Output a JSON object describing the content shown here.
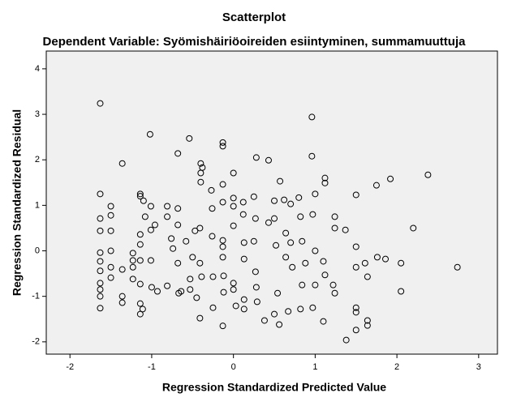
{
  "chart_data": {
    "type": "scatter",
    "title": "Scatterplot",
    "subtitle": "Dependent Variable: Syömishäiriöoireiden esiintyminen, summamuuttuja",
    "xlabel": "Regression Standardized Predicted Value",
    "ylabel": "Regression Standardized Residual",
    "xlim": [
      -2.29,
      3.23
    ],
    "ylim": [
      -2.27,
      4.39
    ],
    "xticks": [
      -2,
      -1,
      0,
      1,
      2,
      3
    ],
    "yticks": [
      -2,
      -1,
      0,
      1,
      2,
      3,
      4
    ],
    "grid": false,
    "color": "#000000",
    "background": "#f0f0f0",
    "x": [
      -1.63,
      -1.02,
      -1.36,
      -0.54,
      -0.68,
      -0.13,
      -0.13,
      0.96,
      0.96,
      0.28,
      0.43,
      2.38,
      1.92,
      1.75,
      1.12,
      1.12,
      1.5,
      2.2,
      2.74,
      1.38,
      1.5,
      1.64,
      1.64,
      1.5,
      1.5,
      1.1,
      0.97,
      0.56,
      0.5,
      0.38,
      -0.13,
      -0.41,
      -1.14,
      -1.11,
      -1.14,
      -1.36,
      -1.36,
      -1.63,
      -1.63,
      -1.63,
      -1.63,
      -1.63,
      -1.63,
      -1.63,
      -1.63,
      -1.63,
      -1.63,
      -1.5,
      -1.5,
      -1.5,
      -1.5,
      -1.5,
      -1.5,
      -1.36,
      -1.23,
      -1.23,
      -1.23,
      -1.23,
      -1.14,
      -1.14,
      -1.1,
      -1.08,
      -1.14,
      -1.14,
      -1.14,
      -1.14,
      -1.01,
      -1.01,
      -0.96,
      -1.01,
      -1.0,
      -0.93,
      -0.81,
      -0.81,
      -0.81,
      -0.76,
      -0.74,
      -0.68,
      -0.68,
      -0.68,
      -0.67,
      -0.64,
      -0.58,
      -0.53,
      -0.53,
      -0.5,
      -0.47,
      -0.45,
      -0.41,
      -0.41,
      -0.4,
      -0.4,
      -0.38,
      -0.4,
      -0.39,
      -0.27,
      -0.26,
      -0.26,
      -0.25,
      -0.25,
      -0.13,
      -0.13,
      -0.13,
      -0.13,
      -0.13,
      -0.12,
      -0.12,
      0,
      0,
      0,
      0,
      0,
      0,
      0.03,
      0.12,
      0.12,
      0.13,
      0.13,
      0.13,
      0.13,
      0.25,
      0.27,
      0.25,
      0.27,
      0.28,
      0.29,
      0.43,
      0.5,
      0.5,
      0.52,
      0.54,
      0.57,
      0.62,
      0.64,
      0.64,
      0.7,
      0.7,
      0.72,
      0.8,
      0.82,
      0.84,
      0.84,
      0.88,
      0.97,
      1.0,
      1.0,
      1.0,
      1.1,
      1.12,
      1.22,
      1.24,
      1.24,
      1.37,
      1.5,
      1.5,
      1.61,
      1.64,
      1.76,
      1.86,
      2.05,
      2.05,
      1.24,
      0.67,
      0.82
    ],
    "values": [
      3.24,
      2.56,
      1.92,
      2.47,
      2.14,
      2.38,
      2.3,
      2.94,
      2.08,
      2.05,
      1.99,
      1.67,
      1.58,
      1.44,
      1.6,
      1.49,
      1.23,
      0.5,
      -0.36,
      -1.96,
      -1.74,
      -1.53,
      -1.64,
      -1.25,
      -1.35,
      -1.55,
      -1.25,
      -1.62,
      -1.39,
      -1.53,
      -1.65,
      -1.48,
      -1.39,
      -1.28,
      -1.16,
      -1.14,
      -1.0,
      -1.26,
      -1.0,
      -0.85,
      -0.71,
      -0.44,
      -0.23,
      -0.04,
      0.44,
      0.71,
      1.25,
      0.98,
      0.78,
      0.44,
      0.0,
      -0.36,
      -0.59,
      -0.41,
      -0.05,
      -0.21,
      -0.36,
      -0.62,
      1.25,
      1.2,
      1.1,
      0.75,
      0.36,
      0.14,
      -0.21,
      -0.73,
      0.98,
      0.46,
      0.57,
      -0.21,
      -0.8,
      -0.89,
      0.98,
      0.75,
      -0.77,
      0.27,
      0.05,
      0.93,
      0.57,
      -0.27,
      -0.93,
      -0.89,
      0.21,
      -0.85,
      -0.62,
      -0.14,
      0.44,
      -1.03,
      0.5,
      -0.27,
      1.92,
      1.71,
      1.83,
      1.51,
      -0.57,
      1.33,
      0.93,
      0.32,
      -0.57,
      -1.25,
      1.07,
      1.46,
      0.23,
      0.09,
      -0.14,
      -0.55,
      -0.91,
      1.71,
      1.16,
      0.98,
      0.55,
      -0.71,
      -0.85,
      -1.21,
      1.07,
      0.8,
      0.18,
      -0.18,
      -1.07,
      -1.28,
      1.19,
      0.71,
      0.21,
      -0.46,
      -0.8,
      -1.12,
      0.62,
      1.1,
      0.71,
      0.12,
      -0.93,
      1.53,
      1.12,
      0.39,
      -0.14,
      1.03,
      0.18,
      -0.36,
      1.17,
      0.75,
      0.21,
      -0.75,
      -0.27,
      0.8,
      1.25,
      0.0,
      -0.75,
      -0.23,
      -0.53,
      -0.75,
      0.5,
      0.75,
      0.46,
      0.09,
      -0.36,
      -0.27,
      -0.57,
      -0.14,
      -0.18,
      -0.27,
      -0.89,
      -0.93,
      -1.33,
      -1.28
    ]
  }
}
